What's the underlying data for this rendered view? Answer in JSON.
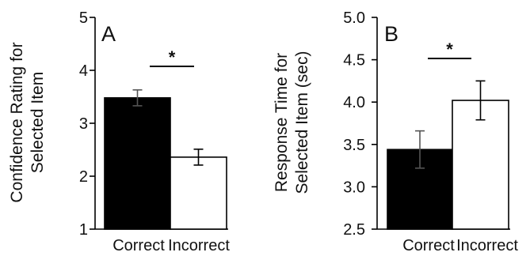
{
  "chart_data": [
    {
      "type": "bar",
      "panel_label": "A",
      "ylabel_lines": [
        "Confidence Rating for",
        "Selected Item"
      ],
      "ylim": [
        1,
        5
      ],
      "yticks": [
        "1",
        "2",
        "3",
        "4",
        "5"
      ],
      "categories": [
        "Correct",
        "Incorrect"
      ],
      "values": [
        3.48,
        2.36
      ],
      "errors": [
        0.15,
        0.15
      ],
      "bar_colors": [
        "#000000",
        "#ffffff"
      ],
      "significance": "*"
    },
    {
      "type": "bar",
      "panel_label": "B",
      "ylabel_lines": [
        "Response Time for",
        "Selected Item (sec)"
      ],
      "ylim": [
        2.5,
        5.0
      ],
      "yticks": [
        "2.5",
        "3.0",
        "3.5",
        "4.0",
        "4.5",
        "5.0"
      ],
      "categories": [
        "Correct",
        "Incorrect"
      ],
      "values": [
        3.44,
        4.02
      ],
      "errors": [
        0.22,
        0.23
      ],
      "bar_colors": [
        "#000000",
        "#ffffff"
      ],
      "significance": "*"
    }
  ]
}
